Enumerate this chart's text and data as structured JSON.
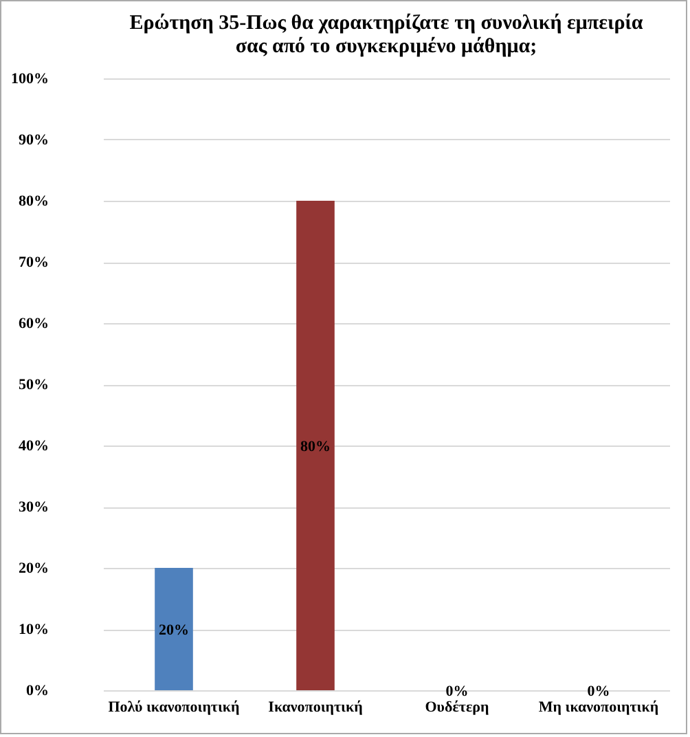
{
  "chart_data": {
    "type": "bar",
    "title": "Ερώτηση 35-Πως θα χαρακτηρίζατε τη συνολική εμπειρία σας από το συγκεκριμένο μάθημα;",
    "categories": [
      "Πολύ ικανοποιητική",
      "Ικανοποιητική",
      "Ουδέτερη",
      "Μη ικανοποιητική"
    ],
    "values": [
      20,
      80,
      0,
      0
    ],
    "colors": [
      "#4f81bd",
      "#943634",
      "#9bbb59",
      "#8064a2"
    ],
    "value_labels": [
      "20%",
      "80%",
      "0%",
      "0%"
    ],
    "ylim": [
      0,
      100
    ],
    "yticks": [
      {
        "value": 0,
        "label": "0%"
      },
      {
        "value": 10,
        "label": "10%"
      },
      {
        "value": 20,
        "label": "20%"
      },
      {
        "value": 30,
        "label": "30%"
      },
      {
        "value": 40,
        "label": "40%"
      },
      {
        "value": 50,
        "label": "50%"
      },
      {
        "value": 60,
        "label": "60%"
      },
      {
        "value": 70,
        "label": "70%"
      },
      {
        "value": 80,
        "label": "80%"
      },
      {
        "value": 90,
        "label": "90%"
      },
      {
        "value": 100,
        "label": "100%"
      }
    ],
    "grid": "y"
  }
}
